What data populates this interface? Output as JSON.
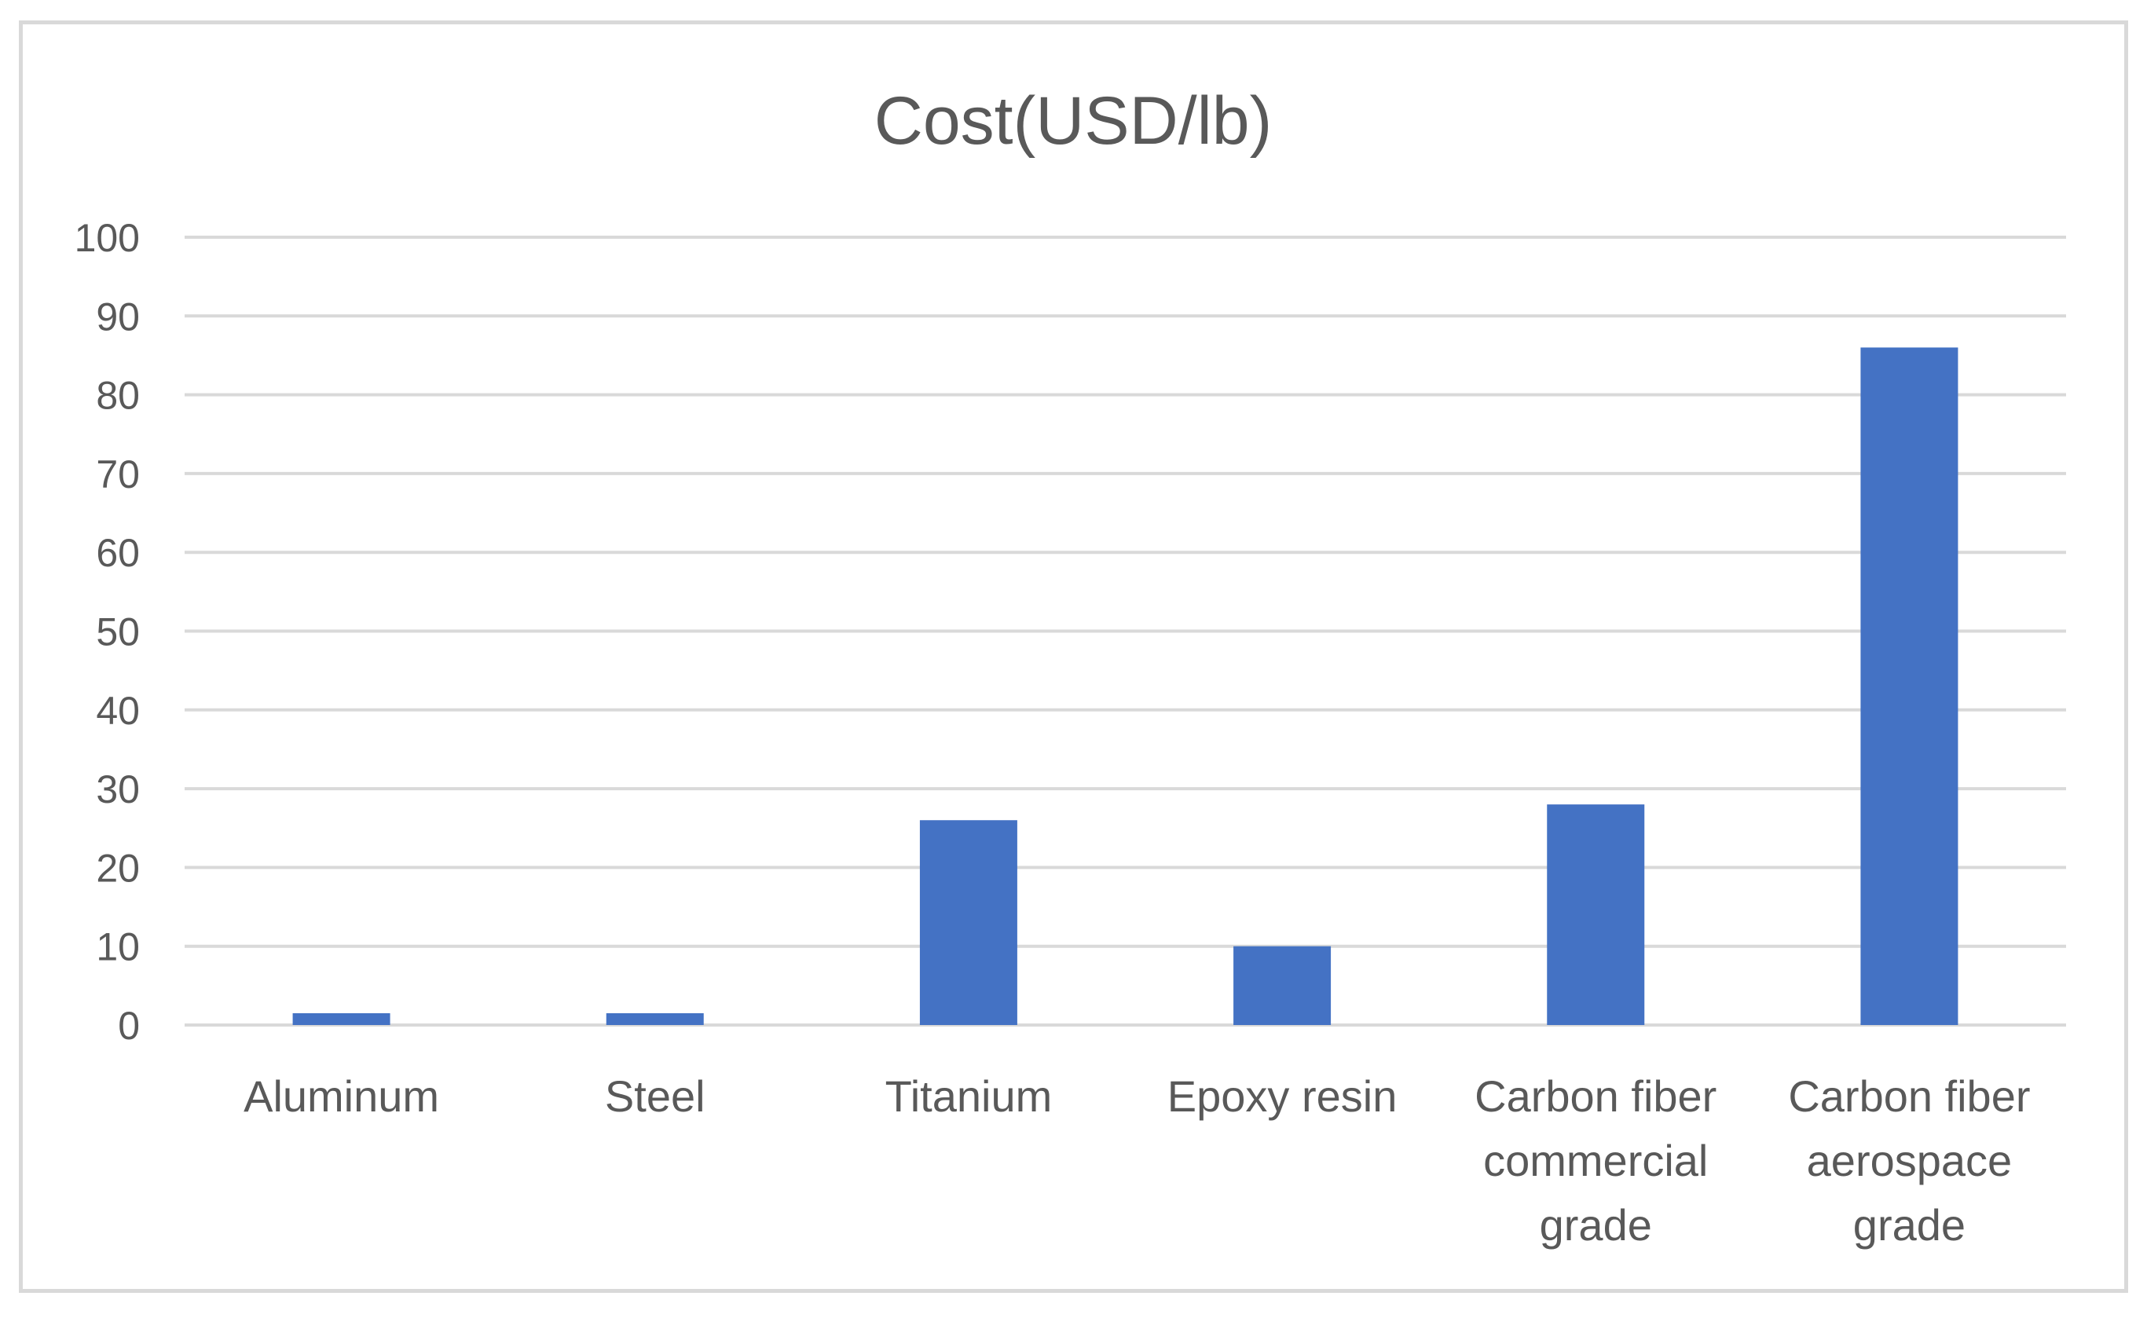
{
  "chart_data": {
    "type": "bar",
    "title": "Cost(USD/lb)",
    "xlabel": "",
    "ylabel": "",
    "ylim": [
      0,
      100
    ],
    "yticks": [
      0,
      10,
      20,
      30,
      40,
      50,
      60,
      70,
      80,
      90,
      100
    ],
    "grid": true,
    "legend": "none",
    "bar_color": "#4472c4",
    "categories": [
      [
        "Aluminum"
      ],
      [
        "Steel"
      ],
      [
        "Titanium"
      ],
      [
        "Epoxy resin"
      ],
      [
        "Carbon fiber",
        "commercial",
        "grade"
      ],
      [
        "Carbon fiber",
        "aerospace",
        "grade"
      ]
    ],
    "values": [
      1.5,
      1.5,
      26,
      10,
      28,
      86
    ]
  }
}
